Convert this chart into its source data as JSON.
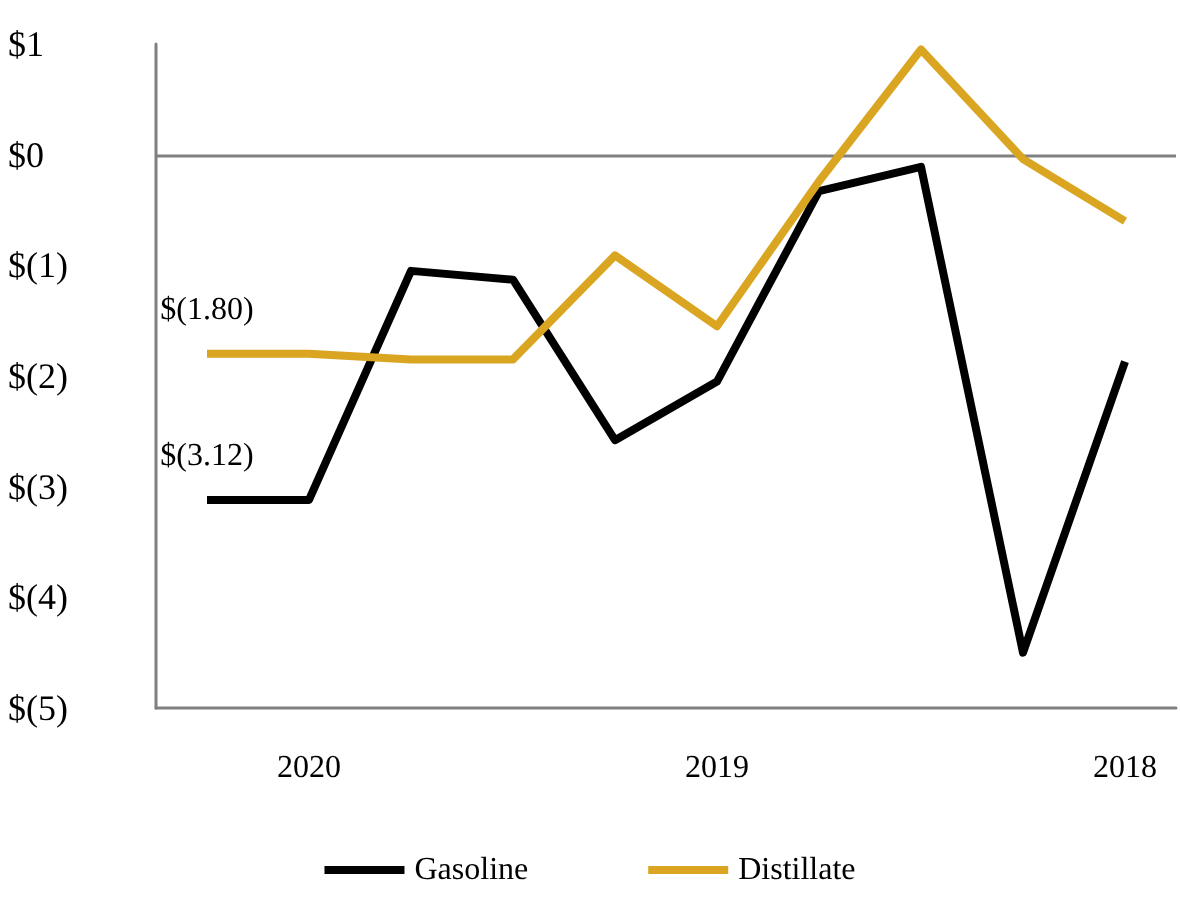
{
  "chart_data": {
    "type": "line",
    "categories": [
      null,
      "2020",
      null,
      null,
      null,
      "2019",
      null,
      null,
      null,
      "2018"
    ],
    "series": [
      {
        "name": "Gasoline",
        "color": "#000000",
        "values": [
          -3.12,
          -3.12,
          -1.05,
          -1.13,
          -2.58,
          -2.05,
          -0.33,
          -0.11,
          -4.5,
          -1.87
        ],
        "value_labels": [
          "$(3.12)",
          null,
          null,
          null,
          null,
          null,
          null,
          null,
          null,
          null
        ]
      },
      {
        "name": "Distillate",
        "color": "#daa520",
        "values": [
          -1.8,
          -1.8,
          -1.85,
          -1.85,
          -0.91,
          -1.55,
          -0.24,
          0.95,
          -0.04,
          -0.6
        ],
        "value_labels": [
          "$(1.80)",
          null,
          null,
          null,
          null,
          null,
          null,
          null,
          null,
          null
        ]
      }
    ],
    "ylim": [
      -5,
      1
    ],
    "yticks": [
      {
        "value": -5,
        "label": "$(5)"
      },
      {
        "value": -4,
        "label": "$(4)"
      },
      {
        "value": -3,
        "label": "$(3)"
      },
      {
        "value": -2,
        "label": "$(2)"
      },
      {
        "value": -1,
        "label": "$(1)"
      },
      {
        "value": 0,
        "label": "$0"
      },
      {
        "value": 1,
        "label": "$1"
      }
    ],
    "ref_lines": [
      {
        "axis": "y",
        "value": 0,
        "color": "#808080"
      }
    ],
    "grid": false,
    "legend": "bottom",
    "marker": "none",
    "line_style": "solid"
  }
}
